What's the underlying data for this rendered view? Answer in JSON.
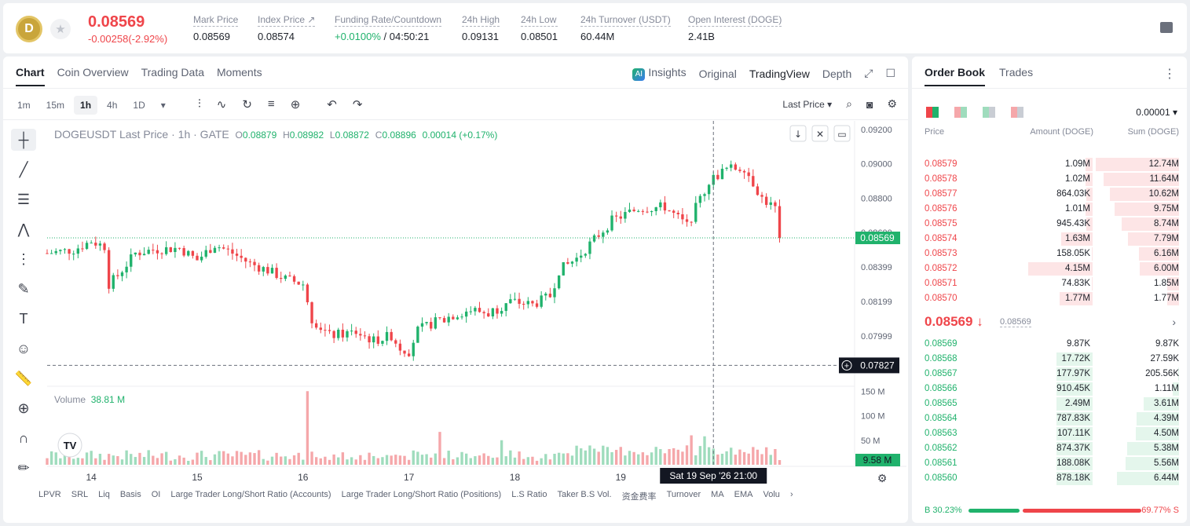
{
  "header": {
    "coin_initial": "D",
    "last_price": "0.08569",
    "change": "-0.00258(-2.92%)",
    "stats": [
      {
        "label": "Mark Price",
        "value": "0.08569"
      },
      {
        "label": "Index Price ↗",
        "value": "0.08574"
      },
      {
        "label": "Funding Rate/Countdown",
        "value_green": "+0.0100%",
        "value": " / 04:50:21"
      },
      {
        "label": "24h High",
        "value": "0.09131"
      },
      {
        "label": "24h Low",
        "value": "0.08501"
      },
      {
        "label": "24h Turnover (USDT)",
        "value": "60.44M"
      },
      {
        "label": "Open Interest (DOGE)",
        "value": "2.41B"
      }
    ]
  },
  "chart_tabs": [
    "Chart",
    "Coin Overview",
    "Trading Data",
    "Moments"
  ],
  "chart_views": {
    "insights": "Insights",
    "original": "Original",
    "tradingview": "TradingView",
    "depth": "Depth"
  },
  "intervals": [
    "1m",
    "15m",
    "1h",
    "4h",
    "1D"
  ],
  "price_source": "Last Price",
  "legend": {
    "symbol": "DOGEUSDT Last Price · 1h · GATE",
    "o_label": "O",
    "o": "0.08879",
    "h_label": "H",
    "h": "0.08982",
    "l_label": "L",
    "l": "0.08872",
    "c_label": "C",
    "c": "0.08896",
    "chg": "0.00014 (+0.17%)"
  },
  "volume_legend": {
    "label": "Volume",
    "value": "38.81 M"
  },
  "bottom_indicators": [
    "LPVR",
    "SRL",
    "Liq",
    "Basis",
    "OI",
    "Large Trader Long/Short Ratio (Accounts)",
    "Large Trader Long/Short Ratio (Positions)",
    "L.S Ratio",
    "Taker B.S Vol.",
    "资金费率",
    "Turnover",
    "MA",
    "EMA",
    "Volu"
  ],
  "chart_data": {
    "type": "candlestick",
    "symbol": "DOGEUSDT",
    "interval": "1h",
    "y_ticks": [
      "0.09200",
      "0.09000",
      "0.08800",
      "0.08600",
      "0.08399",
      "0.08199",
      "0.07999"
    ],
    "y_tick_values": [
      0.092,
      0.09,
      0.088,
      0.086,
      0.08399,
      0.08199,
      0.07999
    ],
    "ylim": [
      0.0771,
      0.0925
    ],
    "x_ticks": [
      "14",
      "15",
      "16",
      "17",
      "18",
      "19"
    ],
    "x_tick_hours": [
      0,
      24,
      48,
      72,
      96,
      120
    ],
    "x_range_hours": [
      -10,
      173
    ],
    "current_price_label": "0.08569",
    "current_price": 0.08569,
    "crosshair_price_label": "0.07827",
    "crosshair_price": 0.07827,
    "crosshair_time_label": "Sat 19 Sep '26   21:00",
    "crosshair_hour": 141,
    "volume_ticks": [
      "150 M",
      "100 M",
      "50 M"
    ],
    "volume_tick_values": [
      150,
      100,
      50
    ],
    "volume_ylim": [
      0,
      160
    ],
    "last_volume_label": "9.58 M",
    "last_volume": 9.58,
    "anchors": [
      [
        -10,
        0.0848
      ],
      [
        -4,
        0.085
      ],
      [
        0,
        0.0855
      ],
      [
        3,
        0.0852
      ],
      [
        4,
        0.083
      ],
      [
        6,
        0.0835
      ],
      [
        10,
        0.0848
      ],
      [
        14,
        0.085
      ],
      [
        20,
        0.0851
      ],
      [
        24,
        0.0844
      ],
      [
        28,
        0.0853
      ],
      [
        32,
        0.0848
      ],
      [
        36,
        0.0842
      ],
      [
        40,
        0.0838
      ],
      [
        44,
        0.0833
      ],
      [
        48,
        0.083
      ],
      [
        50,
        0.081
      ],
      [
        54,
        0.08
      ],
      [
        60,
        0.0802
      ],
      [
        64,
        0.0797
      ],
      [
        68,
        0.08
      ],
      [
        70,
        0.0793
      ],
      [
        72,
        0.0791
      ],
      [
        74,
        0.0803
      ],
      [
        78,
        0.0808
      ],
      [
        82,
        0.0812
      ],
      [
        86,
        0.0815
      ],
      [
        90,
        0.0813
      ],
      [
        95,
        0.082
      ],
      [
        100,
        0.0818
      ],
      [
        104,
        0.0823
      ],
      [
        106,
        0.0838
      ],
      [
        110,
        0.0845
      ],
      [
        114,
        0.0856
      ],
      [
        118,
        0.0867
      ],
      [
        124,
        0.0874
      ],
      [
        130,
        0.0875
      ],
      [
        135,
        0.0864
      ],
      [
        140,
        0.089
      ],
      [
        144,
        0.0897
      ],
      [
        148,
        0.0898
      ],
      [
        152,
        0.088
      ],
      [
        155,
        0.0874
      ],
      [
        156,
        0.0857
      ]
    ],
    "volume_spikes": [
      [
        49,
        150
      ],
      [
        79,
        67
      ],
      [
        93,
        50
      ],
      [
        136,
        60
      ],
      [
        139,
        58
      ]
    ]
  },
  "order_book": {
    "tabs": [
      "Order Book",
      "Trades"
    ],
    "precision": "0.00001",
    "headers": {
      "price": "Price",
      "amount": "Amount (DOGE)",
      "sum": "Sum (DOGE)"
    },
    "asks": [
      {
        "price": "0.08579",
        "amount": "1.09M",
        "sum": "12.74M",
        "depth": 1.0,
        "own": 0.08
      },
      {
        "price": "0.08578",
        "amount": "1.02M",
        "sum": "11.64M",
        "depth": 0.91,
        "own": 0.08
      },
      {
        "price": "0.08577",
        "amount": "864.03K",
        "sum": "10.62M",
        "depth": 0.83,
        "own": 0.07
      },
      {
        "price": "0.08576",
        "amount": "1.01M",
        "sum": "9.75M",
        "depth": 0.77,
        "own": 0.08
      },
      {
        "price": "0.08575",
        "amount": "945.43K",
        "sum": "8.74M",
        "depth": 0.69,
        "own": 0.07
      },
      {
        "price": "0.08574",
        "amount": "1.63M",
        "sum": "7.79M",
        "depth": 0.61,
        "own": 0.36
      },
      {
        "price": "0.08573",
        "amount": "158.05K",
        "sum": "6.16M",
        "depth": 0.48,
        "own": 0.01
      },
      {
        "price": "0.08572",
        "amount": "4.15M",
        "sum": "6.00M",
        "depth": 0.47,
        "own": 0.75
      },
      {
        "price": "0.08571",
        "amount": "74.83K",
        "sum": "1.85M",
        "depth": 0.14,
        "own": 0.01
      },
      {
        "price": "0.08570",
        "amount": "1.77M",
        "sum": "1.77M",
        "depth": 0.14,
        "own": 0.38
      }
    ],
    "mid": {
      "price": "0.08569",
      "arrow": "↓",
      "mark": "0.08569"
    },
    "bids": [
      {
        "price": "0.08569",
        "amount": "9.87K",
        "sum": "9.87K",
        "depth": 0.0,
        "own": 0.0
      },
      {
        "price": "0.08568",
        "amount": "17.72K",
        "sum": "27.59K",
        "depth": 0.0,
        "own": 0.42
      },
      {
        "price": "0.08567",
        "amount": "177.97K",
        "sum": "205.56K",
        "depth": 0.01,
        "own": 0.42
      },
      {
        "price": "0.08566",
        "amount": "910.45K",
        "sum": "1.11M",
        "depth": 0.08,
        "own": 0.42
      },
      {
        "price": "0.08565",
        "amount": "2.49M",
        "sum": "3.61M",
        "depth": 0.42,
        "own": 0.42
      },
      {
        "price": "0.08564",
        "amount": "787.83K",
        "sum": "4.39M",
        "depth": 0.51,
        "own": 0.42
      },
      {
        "price": "0.08563",
        "amount": "107.11K",
        "sum": "4.50M",
        "depth": 0.52,
        "own": 0.42
      },
      {
        "price": "0.08562",
        "amount": "874.37K",
        "sum": "5.38M",
        "depth": 0.62,
        "own": 0.42
      },
      {
        "price": "0.08561",
        "amount": "188.08K",
        "sum": "5.56M",
        "depth": 0.64,
        "own": 0.42
      },
      {
        "price": "0.08560",
        "amount": "878.18K",
        "sum": "6.44M",
        "depth": 0.75,
        "own": 0.42
      }
    ],
    "ratio": {
      "buy_label": "B",
      "buy": "30.23%",
      "sell_label": "S",
      "sell": "69.77%",
      "buy_fraction": 0.3023
    }
  },
  "colors": {
    "up": "#20b26c",
    "down": "#ef454a",
    "up_vol": "#9fdcbd",
    "down_vol": "#f5a7aa"
  }
}
